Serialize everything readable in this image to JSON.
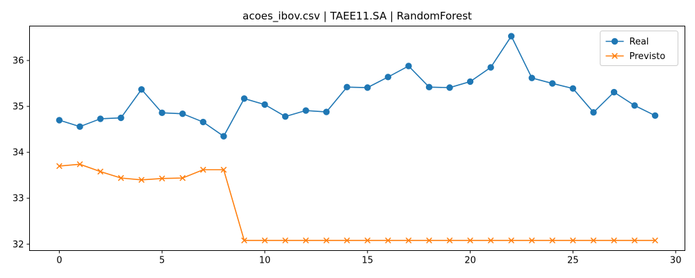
{
  "chart_data": {
    "type": "line",
    "title": "acoes_ibov.csv | TAEE11.SA | RandomForest",
    "xlabel": "",
    "ylabel": "",
    "xlim": [
      -1.45,
      30.45
    ],
    "ylim": [
      31.86,
      36.75
    ],
    "xticks": [
      0,
      5,
      10,
      15,
      20,
      25,
      30
    ],
    "yticks": [
      32,
      33,
      34,
      35,
      36
    ],
    "grid": false,
    "legend_position": "top-right",
    "x": [
      0,
      1,
      2,
      3,
      4,
      5,
      6,
      7,
      8,
      9,
      10,
      11,
      12,
      13,
      14,
      15,
      16,
      17,
      18,
      19,
      20,
      21,
      22,
      23,
      24,
      25,
      26,
      27,
      28,
      29
    ],
    "series": [
      {
        "name": "Real",
        "color": "#1f77b4",
        "marker": "circle",
        "values": [
          34.7,
          34.56,
          34.73,
          34.75,
          35.37,
          34.86,
          34.84,
          34.66,
          34.35,
          35.17,
          35.04,
          34.78,
          34.91,
          34.88,
          35.42,
          35.41,
          35.64,
          35.88,
          35.42,
          35.41,
          35.54,
          35.85,
          36.53,
          35.62,
          35.5,
          35.39,
          34.87,
          35.31,
          35.02,
          34.8
        ]
      },
      {
        "name": "Previsto",
        "color": "#ff7f0e",
        "marker": "x",
        "values": [
          33.7,
          33.74,
          33.58,
          33.44,
          33.4,
          33.43,
          33.44,
          33.62,
          33.62,
          32.08,
          32.08,
          32.08,
          32.08,
          32.08,
          32.08,
          32.08,
          32.08,
          32.08,
          32.08,
          32.08,
          32.08,
          32.08,
          32.08,
          32.08,
          32.08,
          32.08,
          32.08,
          32.08,
          32.08,
          32.08
        ]
      }
    ]
  }
}
